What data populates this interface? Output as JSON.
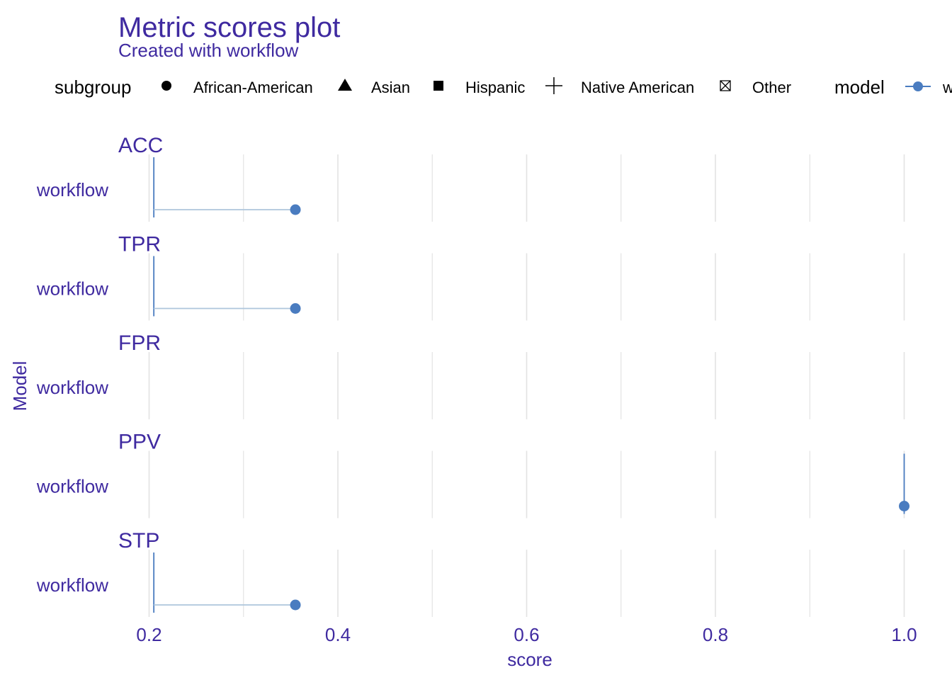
{
  "chart_data": {
    "type": "scatter",
    "title": "Metric scores plot",
    "subtitle": "Created with workflow",
    "xlabel": "score",
    "ylabel": "Model",
    "xlim": [
      0.16,
      1.03
    ],
    "x_ticks": [
      {
        "value": 0.2,
        "label": "0.2"
      },
      {
        "value": 0.4,
        "label": "0.4"
      },
      {
        "value": 0.6,
        "label": "0.6"
      },
      {
        "value": 0.8,
        "label": "0.8"
      },
      {
        "value": 1.0,
        "label": "1.0"
      }
    ],
    "grid": true,
    "legend_position": "top",
    "legend": {
      "subgroup_title": "subgroup",
      "subgroups": [
        {
          "name": "African-American",
          "shape": "circle"
        },
        {
          "name": "Asian",
          "shape": "triangle"
        },
        {
          "name": "Hispanic",
          "shape": "square"
        },
        {
          "name": "Native American",
          "shape": "plus"
        },
        {
          "name": "Other",
          "shape": "boxed-x"
        }
      ],
      "model_title": "model",
      "model_entry_text": "w"
    },
    "colors": {
      "text": "#3f2aa0",
      "point": "#4a7cc0",
      "grid": "#e3e3e3",
      "line": "#aec6dc"
    },
    "facets": [
      {
        "label": "ACC",
        "model": "workflow",
        "baseline": 0.205,
        "value": 0.355
      },
      {
        "label": "TPR",
        "model": "workflow",
        "baseline": 0.205,
        "value": 0.355
      },
      {
        "label": "FPR",
        "model": "workflow",
        "baseline": null,
        "value": null
      },
      {
        "label": "PPV",
        "model": "workflow",
        "baseline": 1.0,
        "value": 1.0
      },
      {
        "label": "STP",
        "model": "workflow",
        "baseline": 0.205,
        "value": 0.355
      }
    ]
  }
}
